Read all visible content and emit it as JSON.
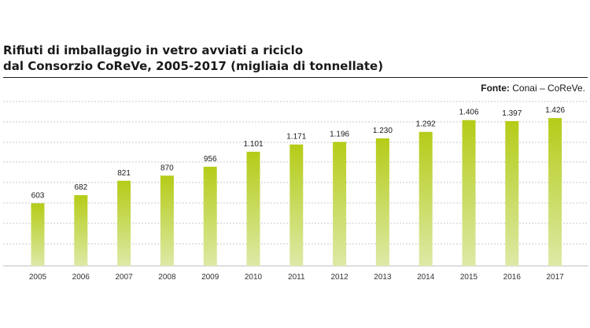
{
  "title_line1": "Rifiuti di imballaggio in vetro avviati a riciclo",
  "title_line2": "dal Consorzio CoReVe, 2005-2017 (migliaia di tonnellate)",
  "source_label": "Fonte:",
  "source_text": "Conai – CoReVe.",
  "colors": {
    "bar_top": "#b5cc18",
    "bar_bottom": "#dde9a6",
    "grid": "#c8c8c8",
    "text": "#1a1a1a"
  },
  "chart_data": {
    "type": "bar",
    "title": "Rifiuti di imballaggio in vetro avviati a riciclo dal Consorzio CoReVe, 2005-2017 (migliaia di tonnellate)",
    "categories": [
      "2005",
      "2006",
      "2007",
      "2008",
      "2009",
      "2010",
      "2011",
      "2012",
      "2013",
      "2014",
      "2015",
      "2016",
      "2017"
    ],
    "values": [
      603,
      682,
      821,
      870,
      956,
      1101,
      1171,
      1196,
      1230,
      1292,
      1406,
      1397,
      1426
    ],
    "value_labels": [
      "603",
      "682",
      "821",
      "870",
      "956",
      "1.101",
      "1.171",
      "1.196",
      "1.230",
      "1.292",
      "1.406",
      "1.397",
      "1.426"
    ],
    "xlabel": "",
    "ylabel": "",
    "ylim": [
      0,
      1600
    ],
    "grid": true,
    "legend": "none"
  }
}
